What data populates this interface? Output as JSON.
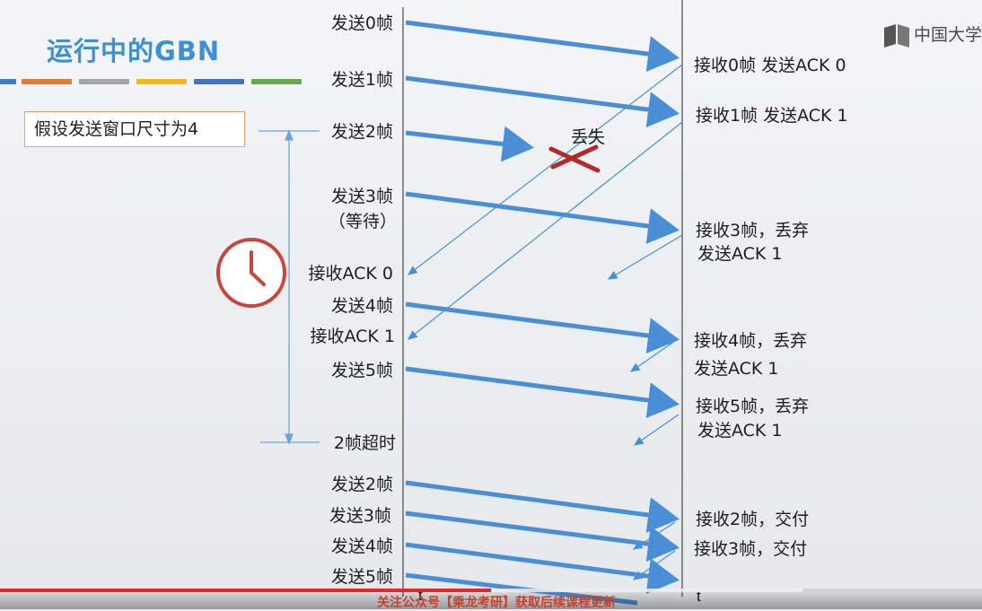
{
  "slide": {
    "title": "运行中的GBN",
    "stripe_colors": [
      "#3e7fc4",
      "#e07b39",
      "#a5a5a5",
      "#f0b81c",
      "#4472c4",
      "#6aa84f"
    ],
    "window_note": "假设发送窗口尺寸为4",
    "logo_text": "中国大学",
    "lost_label": "丢失",
    "sender_labels": [
      "发送0帧",
      "发送1帧",
      "发送2帧",
      "发送3帧",
      "（等待）",
      "接收ACK 0",
      "发送4帧",
      "接收ACK 1",
      "发送5帧",
      "2帧超时",
      "发送2帧",
      "发送3帧",
      "发送4帧",
      "发送5帧"
    ],
    "receiver_labels": [
      "接收0帧 发送ACK 0",
      "接收1帧 发送ACK 1",
      "接收3帧，丢弃",
      "发送ACK 1",
      "接收4帧，丢弃",
      "发送ACK 1",
      "接收5帧，丢弃",
      "发送ACK 1",
      "接收2帧，交付",
      "接收3帧，交付"
    ],
    "time_axis_labels": [
      "t",
      "t"
    ],
    "colors": {
      "arrow": "#4a8fd6",
      "timeline": "#555555",
      "bracket": "#6fa3dc",
      "lost_x": "#b22a2a",
      "clock": "#c9463d"
    }
  },
  "video": {
    "banner_text": "关注公众号【乘龙考研】获取后续课程更新",
    "progress": 0.5
  }
}
